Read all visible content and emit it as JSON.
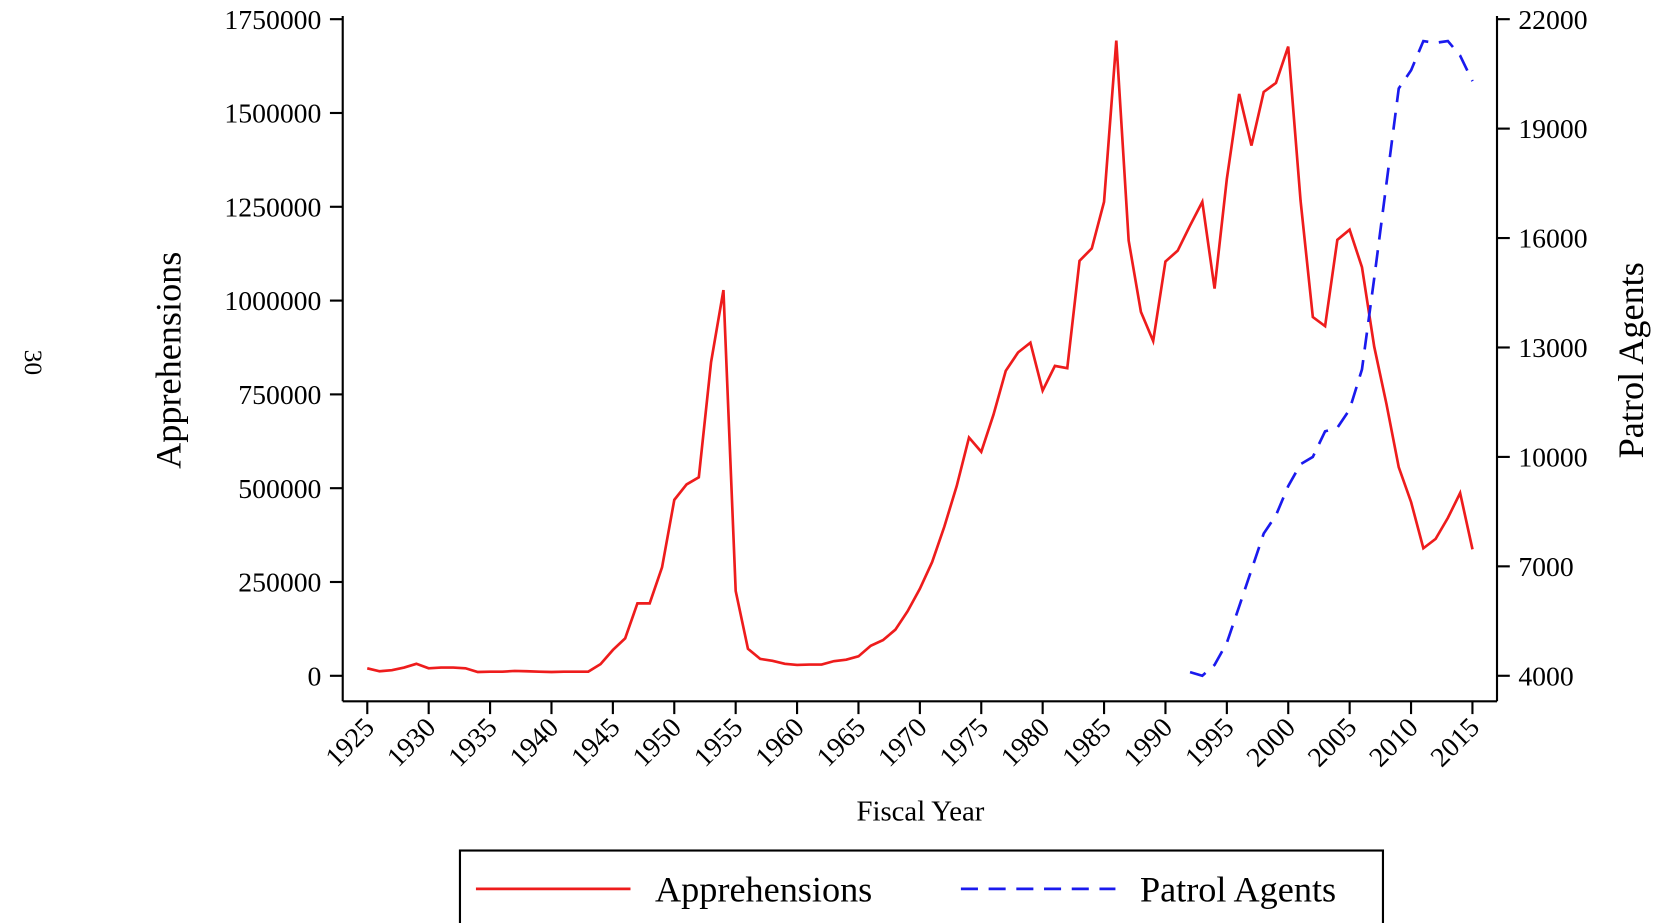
{
  "page_number": "30",
  "chart_data": {
    "type": "line",
    "xlabel": "Fiscal Year",
    "ylabel": "Apprehensions",
    "y2label": "Patrol Agents",
    "x": [
      1925,
      1926,
      1927,
      1928,
      1929,
      1930,
      1931,
      1932,
      1933,
      1934,
      1935,
      1936,
      1937,
      1938,
      1939,
      1940,
      1941,
      1942,
      1943,
      1944,
      1945,
      1946,
      1947,
      1948,
      1949,
      1950,
      1951,
      1952,
      1953,
      1954,
      1955,
      1956,
      1957,
      1958,
      1959,
      1960,
      1961,
      1962,
      1963,
      1964,
      1965,
      1966,
      1967,
      1968,
      1969,
      1970,
      1971,
      1972,
      1973,
      1974,
      1975,
      1976,
      1977,
      1978,
      1979,
      1980,
      1981,
      1982,
      1983,
      1984,
      1985,
      1986,
      1987,
      1988,
      1989,
      1990,
      1991,
      1992,
      1993,
      1994,
      1995,
      1996,
      1997,
      1998,
      1999,
      2000,
      2001,
      2002,
      2003,
      2004,
      2005,
      2006,
      2007,
      2008,
      2009,
      2010,
      2011,
      2012,
      2013,
      2014,
      2015
    ],
    "series": [
      {
        "name": "Apprehensions",
        "color": "#ee1c1c",
        "dash": "solid",
        "axis": "y",
        "values": [
          20000,
          12000,
          15000,
          22000,
          32000,
          20000,
          22000,
          22000,
          20000,
          10000,
          11000,
          11000,
          13000,
          12000,
          11000,
          10000,
          11000,
          11000,
          11000,
          31000,
          69000,
          100000,
          193000,
          193000,
          289000,
          469000,
          510000,
          529000,
          836000,
          1028000,
          226000,
          72000,
          45000,
          40000,
          32000,
          29000,
          30000,
          30000,
          39000,
          43000,
          52000,
          80000,
          95000,
          123000,
          172000,
          232000,
          303000,
          398000,
          506000,
          635000,
          597000,
          696000,
          813000,
          862000,
          888000,
          760000,
          826000,
          820000,
          1106000,
          1139000,
          1263000,
          1693000,
          1160000,
          970000,
          892000,
          1104000,
          1133000,
          1200000,
          1263000,
          1032000,
          1324000,
          1551000,
          1413000,
          1556000,
          1580000,
          1677000,
          1266000,
          956000,
          932000,
          1162000,
          1189000,
          1089000,
          877000,
          724000,
          556000,
          463000,
          340000,
          365000,
          421000,
          487000,
          337000
        ]
      },
      {
        "name": "Patrol Agents",
        "color": "#1a1aee",
        "dash": "dashed",
        "axis": "y2",
        "values": [
          null,
          null,
          null,
          null,
          null,
          null,
          null,
          null,
          null,
          null,
          null,
          null,
          null,
          null,
          null,
          null,
          null,
          null,
          null,
          null,
          null,
          null,
          null,
          null,
          null,
          null,
          null,
          null,
          null,
          null,
          null,
          null,
          null,
          null,
          null,
          null,
          null,
          null,
          null,
          null,
          null,
          null,
          null,
          null,
          null,
          null,
          null,
          null,
          null,
          null,
          null,
          null,
          null,
          null,
          null,
          null,
          null,
          null,
          null,
          null,
          null,
          null,
          null,
          null,
          null,
          null,
          null,
          4100,
          4000,
          4300,
          4900,
          5900,
          6900,
          7900,
          8400,
          9200,
          9800,
          10000,
          10700,
          10800,
          11300,
          12400,
          14900,
          17500,
          20100,
          20600,
          21400,
          21350,
          21400,
          21000,
          20300
        ]
      }
    ],
    "xlim": [
      1923,
      2017
    ],
    "xticks": [
      1925,
      1930,
      1935,
      1940,
      1945,
      1950,
      1955,
      1960,
      1965,
      1970,
      1975,
      1980,
      1985,
      1990,
      1995,
      2000,
      2005,
      2010,
      2015
    ],
    "ylim": [
      -68000,
      1750000
    ],
    "yticks": [
      0,
      250000,
      500000,
      750000,
      1000000,
      1250000,
      1500000,
      1750000
    ],
    "y2lim": [
      3300,
      22000
    ],
    "y2ticks": [
      4000,
      7000,
      10000,
      13000,
      16000,
      19000,
      22000
    ],
    "grid": false,
    "legend": "bottom"
  }
}
